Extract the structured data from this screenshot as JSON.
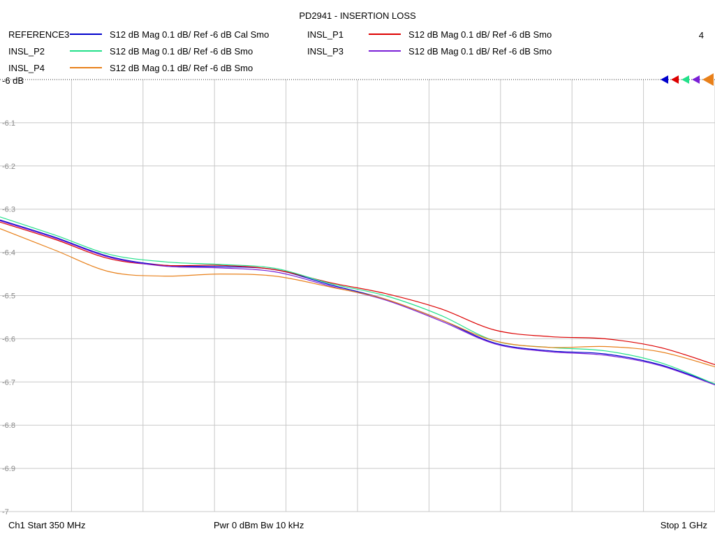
{
  "chart_data": {
    "type": "line",
    "title": "PD2941 - INSERTION LOSS",
    "trace_number": "4",
    "ref_label": "-6 dB",
    "y_ticks": [
      "-6.1",
      "-6.2",
      "-6.3",
      "-6.4",
      "-6.5",
      "-6.6",
      "-6.7",
      "-6.8",
      "-6.9",
      "-7"
    ],
    "ylim": [
      -7.0,
      -6.0
    ],
    "xlim": [
      350,
      1000
    ],
    "x_unit": "MHz",
    "grid": true,
    "footer": {
      "start": "Ch1  Start  350 MHz",
      "center": "Pwr  0 dBm  Bw  10 kHz",
      "stop": "Stop  1 GHz"
    },
    "series": [
      {
        "name": "REFERENCE3",
        "desc": "S12  dB Mag  0.1 dB/ Ref -6 dB  Cal Smo",
        "color": "#0000cc",
        "x": [
          350,
          400,
          450,
          500,
          550,
          600,
          650,
          700,
          750,
          800,
          850,
          900,
          950,
          1000
        ],
        "y": [
          -6.325,
          -6.365,
          -6.41,
          -6.43,
          -6.433,
          -6.44,
          -6.475,
          -6.508,
          -6.555,
          -6.61,
          -6.628,
          -6.635,
          -6.66,
          -6.705
        ]
      },
      {
        "name": "INSL_P1",
        "desc": "S12  dB Mag  0.1 dB/ Ref -6 dB  Smo",
        "color": "#dd0000",
        "x": [
          350,
          400,
          450,
          500,
          550,
          600,
          650,
          700,
          750,
          800,
          850,
          900,
          950,
          1000
        ],
        "y": [
          -6.33,
          -6.37,
          -6.415,
          -6.43,
          -6.43,
          -6.44,
          -6.47,
          -6.495,
          -6.53,
          -6.58,
          -6.595,
          -6.6,
          -6.62,
          -6.66
        ]
      },
      {
        "name": "INSL_P2",
        "desc": "S12  dB Mag  0.1 dB/ Ref -6 dB  Smo",
        "color": "#22e08a",
        "x": [
          350,
          400,
          450,
          500,
          550,
          600,
          650,
          700,
          750,
          800,
          850,
          900,
          950,
          1000
        ],
        "y": [
          -6.318,
          -6.36,
          -6.405,
          -6.422,
          -6.428,
          -6.437,
          -6.472,
          -6.5,
          -6.545,
          -6.605,
          -6.62,
          -6.628,
          -6.655,
          -6.705
        ]
      },
      {
        "name": "INSL_P3",
        "desc": "S12  dB Mag  0.1 dB/ Ref -6 dB  Smo",
        "color": "#7a1fd6",
        "x": [
          350,
          400,
          450,
          500,
          550,
          600,
          650,
          700,
          750,
          800,
          850,
          900,
          950,
          1000
        ],
        "y": [
          -6.327,
          -6.367,
          -6.412,
          -6.432,
          -6.436,
          -6.445,
          -6.478,
          -6.51,
          -6.558,
          -6.612,
          -6.63,
          -6.638,
          -6.662,
          -6.707
        ]
      },
      {
        "name": "INSL_P4",
        "desc": "S12  dB Mag  0.1 dB/ Ref -6 dB  Smo",
        "color": "#e8801a",
        "x": [
          350,
          400,
          450,
          500,
          550,
          600,
          650,
          700,
          750,
          800,
          850,
          900,
          950,
          1000
        ],
        "y": [
          -6.345,
          -6.395,
          -6.445,
          -6.455,
          -6.45,
          -6.455,
          -6.48,
          -6.508,
          -6.555,
          -6.605,
          -6.62,
          -6.618,
          -6.63,
          -6.665
        ]
      }
    ]
  }
}
